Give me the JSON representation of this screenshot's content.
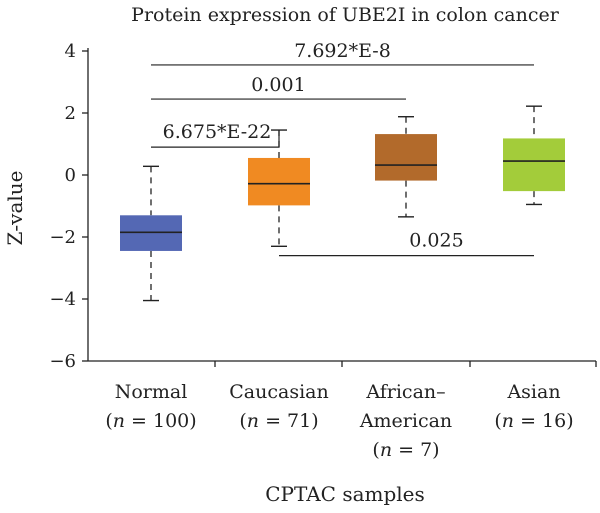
{
  "chart_data": {
    "type": "box",
    "title": "Protein expression of UBE2I in colon cancer",
    "xlabel": "CPTAC samples",
    "ylabel": "Z-value",
    "ylim": [
      -6,
      4
    ],
    "yticks": [
      -6,
      -4,
      -2,
      0,
      2,
      4
    ],
    "ytick_labels": [
      "−6",
      "−4",
      "−2",
      "0",
      "2",
      "4"
    ],
    "groups": [
      {
        "name": "Normal",
        "label_lines": [
          "Normal"
        ],
        "n_text": "(n = 100)",
        "n_prefix": "(",
        "n_var": "n",
        "n_rest": " = 100)",
        "whisker_low": -4.05,
        "q1": -2.45,
        "median": -1.85,
        "q3": -1.3,
        "whisker_high": 0.28,
        "color": "#5468b4"
      },
      {
        "name": "Caucasian",
        "label_lines": [
          "Caucasian"
        ],
        "n_text": "(n = 71)",
        "n_prefix": "(",
        "n_var": "n",
        "n_rest": " = 71)",
        "whisker_low": -2.3,
        "q1": -0.98,
        "median": -0.28,
        "q3": 0.55,
        "whisker_high": 1.45,
        "color": "#f08a22"
      },
      {
        "name": "African–American",
        "label_lines": [
          "African–",
          "American"
        ],
        "n_text": "(n = 7)",
        "n_prefix": "(",
        "n_var": "n",
        "n_rest": " = 7)",
        "whisker_low": -1.35,
        "q1": -0.18,
        "median": 0.32,
        "q3": 1.32,
        "whisker_high": 1.88,
        "color": "#b26a2b"
      },
      {
        "name": "Asian",
        "label_lines": [
          "Asian"
        ],
        "n_text": "(n = 16)",
        "n_prefix": "(",
        "n_var": "n",
        "n_rest": " = 16)",
        "whisker_low": -0.95,
        "q1": -0.52,
        "median": 0.45,
        "q3": 1.18,
        "whisker_high": 2.22,
        "color": "#a3cc3a"
      }
    ],
    "comparisons": [
      {
        "from": 0,
        "to": 1,
        "label": "6.675*E-22",
        "y": 0.9,
        "style": "bracket"
      },
      {
        "from": 0,
        "to": 2,
        "label": "0.001",
        "y": 2.45,
        "style": "line"
      },
      {
        "from": 0,
        "to": 3,
        "label": "7.692*E-8",
        "y": 3.55,
        "style": "line"
      },
      {
        "from": 1,
        "to": 3,
        "label": "0.025",
        "y": -2.6,
        "style": "line"
      }
    ]
  }
}
